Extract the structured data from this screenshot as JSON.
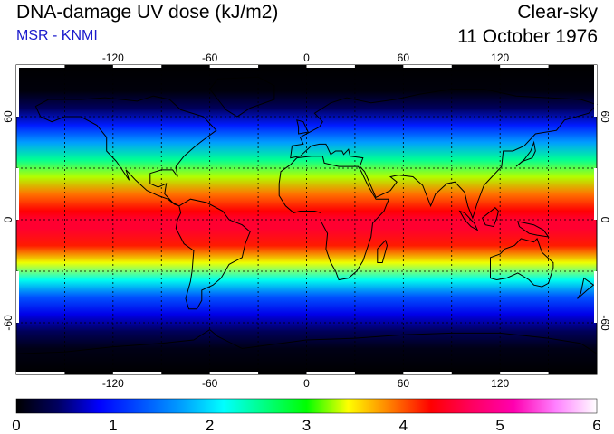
{
  "header": {
    "title": "DNA-damage UV dose (kJ/m2)",
    "subtitle": "MSR - KNMI",
    "sky_condition": "Clear-sky",
    "date": "11 October 1976"
  },
  "map": {
    "projection": "equirectangular",
    "lon_range": [
      -180,
      180
    ],
    "lat_range": [
      -90,
      90
    ],
    "lon_ticks": [
      -120,
      -60,
      0,
      60,
      120
    ],
    "lon_tick_labels": [
      "-120",
      "-60",
      "0",
      "60",
      "120"
    ],
    "lat_ticks": [
      60,
      0,
      -60
    ],
    "lat_tick_labels": [
      "60",
      "0",
      "-60"
    ],
    "grid_lon_step": 30,
    "grid_lat_step": 30,
    "grid_style": "dotted",
    "band_profile": [
      {
        "lat": 90,
        "value": 0.0
      },
      {
        "lat": 75,
        "value": 0.05
      },
      {
        "lat": 65,
        "value": 0.4
      },
      {
        "lat": 55,
        "value": 1.0
      },
      {
        "lat": 45,
        "value": 1.7
      },
      {
        "lat": 35,
        "value": 2.5
      },
      {
        "lat": 25,
        "value": 3.3
      },
      {
        "lat": 15,
        "value": 3.9
      },
      {
        "lat": 5,
        "value": 4.3
      },
      {
        "lat": 0,
        "value": 4.5
      },
      {
        "lat": -5,
        "value": 4.5
      },
      {
        "lat": -15,
        "value": 4.2
      },
      {
        "lat": -25,
        "value": 3.4
      },
      {
        "lat": -35,
        "value": 2.2
      },
      {
        "lat": -45,
        "value": 1.3
      },
      {
        "lat": -55,
        "value": 0.8
      },
      {
        "lat": -65,
        "value": 0.4
      },
      {
        "lat": -75,
        "value": 0.1
      },
      {
        "lat": -90,
        "value": 0.0
      }
    ]
  },
  "colorbar": {
    "min": 0,
    "max": 6,
    "tick_labels": [
      "0",
      "1",
      "2",
      "3",
      "4",
      "5",
      "6"
    ],
    "colors": [
      "#000000",
      "#000060",
      "#0000ff",
      "#0050ff",
      "#00a0ff",
      "#00ffff",
      "#00ff80",
      "#00ff00",
      "#ffff00",
      "#ff8000",
      "#ff0000",
      "#ff0060",
      "#ff00b0",
      "#ff80ff",
      "#ffffff"
    ]
  }
}
